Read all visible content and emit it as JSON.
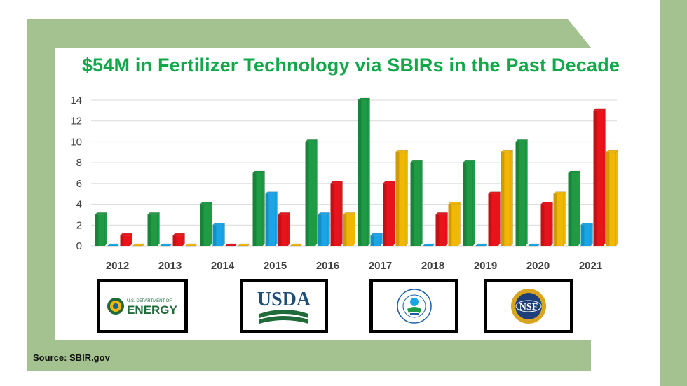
{
  "title": "$54M in Fertilizer Technology via SBIRs in the Past Decade",
  "source": "Source: SBIR.gov",
  "colors": {
    "green_band": "#a3c28f",
    "title": "#12a84a",
    "series_green": "#1f9a45",
    "series_blue": "#1aa6e6",
    "series_red": "#e8141b",
    "series_gold": "#f2b705"
  },
  "logos": [
    {
      "agency": "doe",
      "icon": "doe-seal-icon",
      "border": "#f2b705",
      "line1": "U.S. DEPARTMENT OF",
      "line2": "ENERGY"
    },
    {
      "agency": "usda",
      "icon": "usda-logo-icon",
      "border": "#1f9a45",
      "line1": "USDA",
      "line2": ""
    },
    {
      "agency": "epa",
      "icon": "epa-seal-icon",
      "border": "#1aa6e6",
      "line1": "",
      "line2": ""
    },
    {
      "agency": "nsf",
      "icon": "nsf-seal-icon",
      "border": "#e8141b",
      "line1": "NSF",
      "line2": ""
    }
  ],
  "chart_data": {
    "type": "bar",
    "title": "$54M in Fertilizer Technology via SBIRs in the Past Decade",
    "xlabel": "",
    "ylabel": "",
    "categories": [
      "2012",
      "2013",
      "2014",
      "2015",
      "2016",
      "2017",
      "2018",
      "2019",
      "2020",
      "2021"
    ],
    "ylim": [
      0,
      14
    ],
    "yticks": [
      0,
      2,
      4,
      6,
      8,
      10,
      12,
      14
    ],
    "grid": true,
    "legend": "logo boxes below chart (DOE, USDA, EPA, NSF)",
    "series": [
      {
        "color": "#1f9a45",
        "values": [
          3,
          3,
          4,
          7,
          10,
          14,
          8,
          8,
          10,
          7
        ]
      },
      {
        "color": "#1aa6e6",
        "values": [
          0,
          0,
          2,
          5,
          3,
          1,
          0,
          0,
          0,
          2
        ]
      },
      {
        "color": "#e8141b",
        "values": [
          1,
          1,
          0,
          3,
          6,
          6,
          3,
          5,
          4,
          13
        ]
      },
      {
        "color": "#f2b705",
        "values": [
          0,
          0,
          0,
          0,
          3,
          9,
          4,
          9,
          5,
          9
        ]
      }
    ]
  }
}
